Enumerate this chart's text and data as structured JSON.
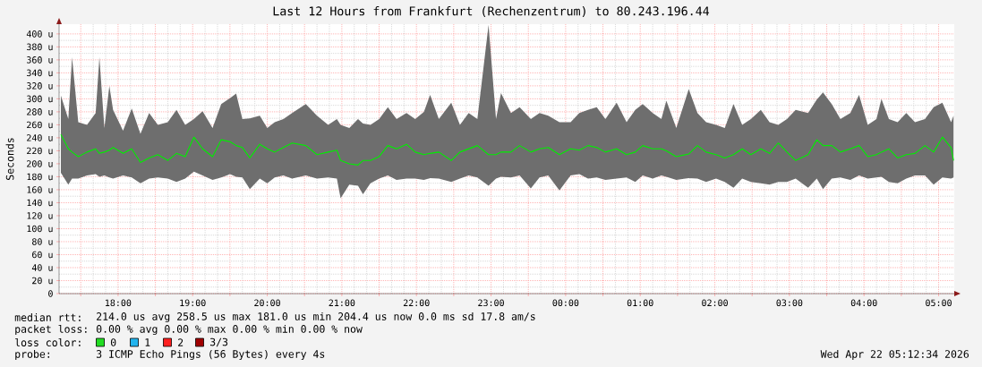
{
  "chart_data": {
    "type": "line",
    "title": "Last 12 Hours from Frankfurt (Rechenzentrum) to 80.243.196.44",
    "ylabel": "Seconds",
    "xlim": [
      "2026-04-21T17:12:34",
      "2026-04-22T05:12:34"
    ],
    "ylim": [
      0,
      415
    ],
    "xticks": [
      {
        "value": "2026-04-21T17:30",
        "label": null
      },
      {
        "value": "2026-04-21T18:00",
        "label": "18:00"
      },
      {
        "value": "2026-04-21T18:30",
        "label": null
      },
      {
        "value": "2026-04-21T19:00",
        "label": "19:00"
      },
      {
        "value": "2026-04-21T19:30",
        "label": null
      },
      {
        "value": "2026-04-21T20:00",
        "label": "20:00"
      },
      {
        "value": "2026-04-21T20:30",
        "label": null
      },
      {
        "value": "2026-04-21T21:00",
        "label": "21:00"
      },
      {
        "value": "2026-04-21T21:30",
        "label": null
      },
      {
        "value": "2026-04-21T22:00",
        "label": "22:00"
      },
      {
        "value": "2026-04-21T22:30",
        "label": null
      },
      {
        "value": "2026-04-21T23:00",
        "label": "23:00"
      },
      {
        "value": "2026-04-21T23:30",
        "label": null
      },
      {
        "value": "2026-04-22T00:00",
        "label": "00:00"
      },
      {
        "value": "2026-04-22T00:30",
        "label": null
      },
      {
        "value": "2026-04-22T01:00",
        "label": "01:00"
      },
      {
        "value": "2026-04-22T01:30",
        "label": null
      },
      {
        "value": "2026-04-22T02:00",
        "label": "02:00"
      },
      {
        "value": "2026-04-22T02:30",
        "label": null
      },
      {
        "value": "2026-04-22T03:00",
        "label": "03:00"
      },
      {
        "value": "2026-04-22T03:30",
        "label": null
      },
      {
        "value": "2026-04-22T04:00",
        "label": "04:00"
      },
      {
        "value": "2026-04-22T04:30",
        "label": null
      },
      {
        "value": "2026-04-22T05:00",
        "label": "05:00"
      }
    ],
    "yticks": [
      0,
      {
        "value": 20,
        "label": "20 u"
      },
      {
        "value": 40,
        "label": "40 u"
      },
      {
        "value": 60,
        "label": "60 u"
      },
      {
        "value": 80,
        "label": "80 u"
      },
      {
        "value": 100,
        "label": "100 u"
      },
      {
        "value": 120,
        "label": "120 u"
      },
      {
        "value": 140,
        "label": "140 u"
      },
      {
        "value": 160,
        "label": "160 u"
      },
      {
        "value": 180,
        "label": "180 u"
      },
      {
        "value": 200,
        "label": "200 u"
      },
      {
        "value": 220,
        "label": "220 u"
      },
      {
        "value": 240,
        "label": "240 u"
      },
      {
        "value": 260,
        "label": "260 u"
      },
      {
        "value": 280,
        "label": "280 u"
      },
      {
        "value": 300,
        "label": "300 u"
      },
      {
        "value": 320,
        "label": "320 u"
      },
      {
        "value": 340,
        "label": "340 u"
      },
      {
        "value": 360,
        "label": "360 u"
      },
      {
        "value": 380,
        "label": "380 u"
      },
      {
        "value": 400,
        "label": "400 u"
      }
    ],
    "grid": true,
    "x": [
      "2026-04-21T17:14",
      "2026-04-21T17:20",
      "2026-04-21T17:23",
      "2026-04-21T17:28",
      "2026-04-21T17:35",
      "2026-04-21T17:42",
      "2026-04-21T17:45",
      "2026-04-21T17:49",
      "2026-04-21T17:53",
      "2026-04-21T17:56",
      "2026-04-21T18:04",
      "2026-04-21T18:11",
      "2026-04-21T18:18",
      "2026-04-21T18:25",
      "2026-04-21T18:32",
      "2026-04-21T18:40",
      "2026-04-21T18:47",
      "2026-04-21T18:54",
      "2026-04-21T19:01",
      "2026-04-21T19:08",
      "2026-04-21T19:16",
      "2026-04-21T19:23",
      "2026-04-21T19:30",
      "2026-04-21T19:35",
      "2026-04-21T19:40",
      "2026-04-21T19:46",
      "2026-04-21T19:54",
      "2026-04-21T20:00",
      "2026-04-21T20:06",
      "2026-04-21T20:13",
      "2026-04-21T20:20",
      "2026-04-21T20:31",
      "2026-04-21T20:40",
      "2026-04-21T20:49",
      "2026-04-21T20:56",
      "2026-04-21T20:59",
      "2026-04-21T21:06",
      "2026-04-21T21:13",
      "2026-04-21T21:17",
      "2026-04-21T21:23",
      "2026-04-21T21:30",
      "2026-04-21T21:37",
      "2026-04-21T21:44",
      "2026-04-21T21:52",
      "2026-04-21T21:59",
      "2026-04-21T22:06",
      "2026-04-21T22:11",
      "2026-04-21T22:18",
      "2026-04-21T22:28",
      "2026-04-21T22:35",
      "2026-04-21T22:42",
      "2026-04-21T22:49",
      "2026-04-21T22:58",
      "2026-04-21T23:04",
      "2026-04-21T23:08",
      "2026-04-21T23:16",
      "2026-04-21T23:23",
      "2026-04-21T23:32",
      "2026-04-21T23:39",
      "2026-04-21T23:46",
      "2026-04-21T23:55",
      "2026-04-22T00:04",
      "2026-04-22T00:11",
      "2026-04-22T00:18",
      "2026-04-22T00:25",
      "2026-04-22T00:32",
      "2026-04-22T00:41",
      "2026-04-22T00:49",
      "2026-04-22T00:56",
      "2026-04-22T01:02",
      "2026-04-22T01:10",
      "2026-04-22T01:17",
      "2026-04-22T01:21",
      "2026-04-22T01:29",
      "2026-04-22T01:39",
      "2026-04-22T01:46",
      "2026-04-22T01:53",
      "2026-04-22T02:01",
      "2026-04-22T02:08",
      "2026-04-22T02:15",
      "2026-04-22T02:22",
      "2026-04-22T02:29",
      "2026-04-22T02:37",
      "2026-04-22T02:44",
      "2026-04-22T02:51",
      "2026-04-22T02:58",
      "2026-04-22T03:05",
      "2026-04-22T03:15",
      "2026-04-22T03:22",
      "2026-04-22T03:27",
      "2026-04-22T03:34",
      "2026-04-22T03:41",
      "2026-04-22T03:49",
      "2026-04-22T03:56",
      "2026-04-22T04:03",
      "2026-04-22T04:10",
      "2026-04-22T04:14",
      "2026-04-22T04:20",
      "2026-04-22T04:27",
      "2026-04-22T04:34",
      "2026-04-22T04:41",
      "2026-04-22T04:49",
      "2026-04-22T04:56",
      "2026-04-22T05:03",
      "2026-04-22T05:10",
      "2026-04-22T05:12"
    ],
    "series": [
      {
        "color": "#00ee00",
        "values": [
          245,
          223,
          218,
          211,
          218,
          223,
          216,
          218,
          221,
          225,
          216,
          223,
          202,
          209,
          214,
          205,
          216,
          211,
          241,
          223,
          211,
          237,
          234,
          228,
          225,
          209,
          230,
          223,
          218,
          225,
          232,
          228,
          214,
          218,
          221,
          205,
          200,
          198,
          205,
          205,
          211,
          228,
          223,
          230,
          218,
          214,
          216,
          218,
          205,
          218,
          223,
          228,
          214,
          214,
          218,
          218,
          228,
          218,
          223,
          225,
          214,
          223,
          221,
          228,
          225,
          218,
          223,
          214,
          218,
          228,
          223,
          223,
          220,
          211,
          215,
          228,
          218,
          214,
          209,
          214,
          223,
          214,
          223,
          216,
          232,
          218,
          205,
          214,
          237,
          228,
          228,
          218,
          223,
          228,
          211,
          214,
          218,
          223,
          209,
          214,
          216,
          228,
          218,
          241,
          225,
          205
        ],
        "lower": [
          186,
          168,
          177,
          177,
          182,
          184,
          180,
          182,
          179,
          177,
          182,
          179,
          170,
          177,
          179,
          177,
          172,
          177,
          188,
          182,
          175,
          179,
          184,
          180,
          179,
          161,
          177,
          170,
          179,
          182,
          177,
          182,
          177,
          179,
          177,
          147,
          168,
          166,
          153,
          170,
          177,
          182,
          175,
          177,
          177,
          175,
          178,
          177,
          172,
          177,
          182,
          179,
          166,
          177,
          180,
          179,
          182,
          162,
          179,
          182,
          159,
          182,
          184,
          177,
          179,
          175,
          177,
          179,
          172,
          182,
          177,
          182,
          180,
          175,
          178,
          177,
          172,
          177,
          172,
          163,
          177,
          172,
          170,
          168,
          172,
          172,
          177,
          163,
          177,
          161,
          177,
          179,
          175,
          182,
          177,
          179,
          180,
          172,
          170,
          177,
          182,
          182,
          168,
          179,
          177,
          179
        ],
        "upper": [
          305,
          269,
          364,
          264,
          260,
          278,
          364,
          255,
          320,
          283,
          251,
          285,
          246,
          278,
          260,
          264,
          283,
          260,
          269,
          281,
          255,
          292,
          301,
          308,
          269,
          270,
          274,
          255,
          264,
          269,
          278,
          292,
          274,
          260,
          269,
          260,
          255,
          269,
          262,
          260,
          269,
          287,
          269,
          278,
          269,
          280,
          306,
          269,
          294,
          260,
          278,
          269,
          414,
          269,
          309,
          278,
          287,
          269,
          278,
          274,
          264,
          264,
          278,
          283,
          287,
          269,
          294,
          264,
          283,
          292,
          278,
          269,
          297,
          255,
          315,
          278,
          264,
          260,
          255,
          292,
          260,
          269,
          283,
          264,
          260,
          269,
          283,
          278,
          299,
          310,
          292,
          269,
          278,
          306,
          260,
          269,
          300,
          269,
          264,
          278,
          264,
          269,
          287,
          294,
          264,
          274
        ]
      }
    ],
    "annotations": [
      "median rtt:",
      "214.0 us avg 258.5 us max 181.0 us min 204.4 us now 0.0 ms sd 17.8 am/s",
      "packet loss:",
      "0.00 % avg 0.00 % max 0.00 % min 0.00 % now",
      "loss color:",
      "0",
      "1",
      "2",
      "3/3",
      "probe:",
      "3 ICMP Echo Pings (56 Bytes) every 4s",
      "Wed Apr 22 05:12:34 2026"
    ]
  }
}
